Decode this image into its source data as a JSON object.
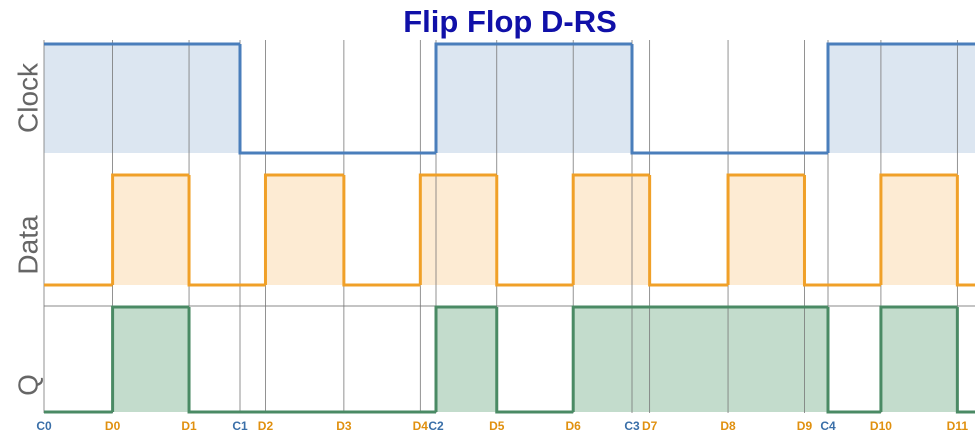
{
  "chart_data": {
    "type": "timing",
    "title": "Flip Flop D-RS",
    "xlim": [
      0,
      47.5
    ],
    "series": [
      {
        "name": "Clock",
        "color": "#4a7ebb",
        "fill": "#dce6f1",
        "x": [
          0,
          10,
          20,
          30,
          40
        ],
        "values": [
          1,
          0,
          1,
          0,
          1
        ]
      },
      {
        "name": "Data",
        "color": "#f0a028",
        "fill": "#fdebd3",
        "x": [
          0,
          3.5,
          7.4,
          11.3,
          15.3,
          19.2,
          23.1,
          27.0,
          30.9,
          34.9,
          38.8,
          42.7,
          46.6
        ],
        "values": [
          0,
          1,
          0,
          1,
          0,
          1,
          0,
          1,
          0,
          1,
          0,
          1,
          0
        ]
      },
      {
        "name": "Q",
        "color": "#4a8a64",
        "fill": "#c3dccc",
        "x": [
          0,
          3.5,
          7.4,
          20,
          23.1,
          27.0,
          40,
          42.7,
          46.6
        ],
        "values": [
          0,
          1,
          0,
          1,
          0,
          1,
          0,
          1,
          0
        ]
      }
    ],
    "clock_edges": {
      "color": "#3a6fa8",
      "labels": [
        "C0",
        "C1",
        "C2",
        "C3",
        "C4"
      ],
      "x": [
        0,
        10,
        20,
        30,
        40
      ]
    },
    "data_edges": {
      "color": "#e0900f",
      "labels": [
        "D0",
        "D1",
        "D2",
        "D3",
        "D4",
        "D5",
        "D6",
        "D7",
        "D8",
        "D9",
        "D10",
        "D11"
      ],
      "x": [
        3.5,
        7.4,
        11.3,
        15.3,
        19.2,
        23.1,
        27.0,
        30.9,
        34.9,
        38.8,
        42.7,
        46.6
      ]
    }
  }
}
